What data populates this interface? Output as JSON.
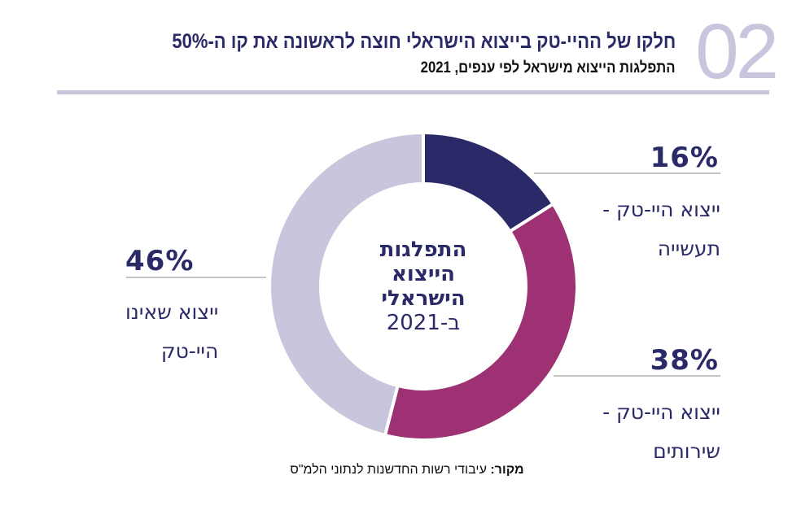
{
  "header": {
    "chart_number": "02",
    "title": "חלקו של ההיי-טק בייצוא הישראלי חוצה לראשונה את קו ה-50%",
    "subtitle": "התפלגות הייצוא מישראל לפי ענפים, 2021"
  },
  "center_label": {
    "lines": [
      "התפלגות",
      "הייצוא",
      "הישראלי",
      "ב-2021"
    ]
  },
  "source": {
    "label": "מקור:",
    "text": "עיבודי רשות החדשנות לנתוני הלמ\"ס"
  },
  "colors": {
    "accent": "#2b2a68",
    "rule": "#c8c6dc"
  },
  "chart_data": {
    "type": "pie",
    "variant": "donut",
    "title": "התפלגות הייצוא הישראלי ב-2021",
    "unit": "%",
    "start": "top",
    "direction": "clockwise",
    "slices": [
      {
        "name": "hightech-manufacturing",
        "label": "ייצוא היי-טק - תעשייה",
        "label_lines": [
          "ייצוא היי-טק -",
          "תעשייה"
        ],
        "value": 16,
        "value_label": "16%",
        "color": "#2b2a68"
      },
      {
        "name": "hightech-services",
        "label": "ייצוא היי-טק - שירותים",
        "label_lines": [
          "ייצוא היי-טק -",
          "שירותים"
        ],
        "value": 38,
        "value_label": "38%",
        "color": "#9e3173"
      },
      {
        "name": "non-hightech",
        "label": "ייצוא שאינו היי-טק",
        "label_lines": [
          "ייצוא שאינו",
          "היי-טק"
        ],
        "value": 46,
        "value_label": "46%",
        "color": "#c8c6dc"
      }
    ]
  }
}
